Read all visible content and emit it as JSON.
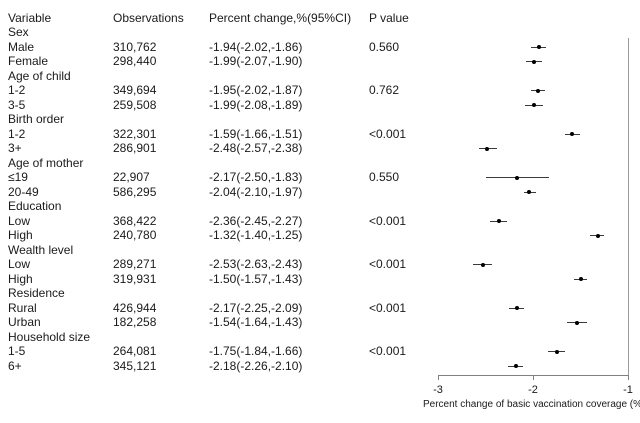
{
  "figure": {
    "background": "#ffffff",
    "text_color": "#1a1a1a",
    "axis_color": "#808080",
    "reference_line_color": "#9a9a9a",
    "ci_line_color": "#3a3a3a",
    "point_color": "#000000"
  },
  "table": {
    "headers": [
      "Variable",
      "Observations",
      "Percent change,%(95%CI)",
      "P value"
    ]
  },
  "chart_data": {
    "type": "scatter",
    "variant": "forest-plot",
    "title": "",
    "xlabel": "Percent change of basic vaccination coverage (%)",
    "xlim": [
      -3,
      -1
    ],
    "xticks": [
      -3,
      -2,
      -1
    ],
    "xtick_labels": [
      "-3",
      "-2",
      "-1"
    ],
    "reference_line_x": -1,
    "grid": false,
    "legend": false,
    "rows": [
      {
        "label": "Sex",
        "group": true,
        "observations": "",
        "percent_change": "",
        "p_value": ""
      },
      {
        "label": "Male",
        "observations": "310,762",
        "percent_change": "-1.94(-2.02,-1.86)",
        "p_value": "0.560",
        "estimate": -1.94,
        "ci_low": -2.02,
        "ci_high": -1.86
      },
      {
        "label": "Female",
        "observations": "298,440",
        "percent_change": "-1.99(-2.07,-1.90)",
        "p_value": "",
        "estimate": -1.99,
        "ci_low": -2.07,
        "ci_high": -1.9
      },
      {
        "label": "Age of child",
        "group": true,
        "observations": "",
        "percent_change": "",
        "p_value": ""
      },
      {
        "label": "1-2",
        "observations": "349,694",
        "percent_change": "-1.95(-2.02,-1.87)",
        "p_value": "0.762",
        "estimate": -1.95,
        "ci_low": -2.02,
        "ci_high": -1.87
      },
      {
        "label": "3-5",
        "observations": "259,508",
        "percent_change": "-1.99(-2.08,-1.89)",
        "p_value": "",
        "estimate": -1.99,
        "ci_low": -2.08,
        "ci_high": -1.89
      },
      {
        "label": "Birth order",
        "group": true,
        "observations": "",
        "percent_change": "",
        "p_value": ""
      },
      {
        "label": "1-2",
        "observations": "322,301",
        "percent_change": "-1.59(-1.66,-1.51)",
        "p_value": "<0.001",
        "estimate": -1.59,
        "ci_low": -1.66,
        "ci_high": -1.51
      },
      {
        "label": "3+",
        "observations": "286,901",
        "percent_change": "-2.48(-2.57,-2.38)",
        "p_value": "",
        "estimate": -2.48,
        "ci_low": -2.57,
        "ci_high": -2.38
      },
      {
        "label": "Age of mother",
        "group": true,
        "observations": "",
        "percent_change": "",
        "p_value": ""
      },
      {
        "label": "≤19",
        "observations": "22,907",
        "percent_change": "-2.17(-2.50,-1.83)",
        "p_value": "0.550",
        "estimate": -2.17,
        "ci_low": -2.5,
        "ci_high": -1.83
      },
      {
        "label": "20-49",
        "observations": "586,295",
        "percent_change": "-2.04(-2.10,-1.97)",
        "p_value": "",
        "estimate": -2.04,
        "ci_low": -2.1,
        "ci_high": -1.97
      },
      {
        "label": "Education",
        "group": true,
        "observations": "",
        "percent_change": "",
        "p_value": ""
      },
      {
        "label": "Low",
        "observations": "368,422",
        "percent_change": "-2.36(-2.45,-2.27)",
        "p_value": "<0.001",
        "estimate": -2.36,
        "ci_low": -2.45,
        "ci_high": -2.27
      },
      {
        "label": "High",
        "observations": "240,780",
        "percent_change": "-1.32(-1.40,-1.25)",
        "p_value": "",
        "estimate": -1.32,
        "ci_low": -1.4,
        "ci_high": -1.25
      },
      {
        "label": "Wealth level",
        "group": true,
        "observations": "",
        "percent_change": "",
        "p_value": ""
      },
      {
        "label": "Low",
        "observations": "289,271",
        "percent_change": "-2.53(-2.63,-2.43)",
        "p_value": "<0.001",
        "estimate": -2.53,
        "ci_low": -2.63,
        "ci_high": -2.43
      },
      {
        "label": "High",
        "observations": "319,931",
        "percent_change": "-1.50(-1.57,-1.43)",
        "p_value": "",
        "estimate": -1.5,
        "ci_low": -1.57,
        "ci_high": -1.43
      },
      {
        "label": "Residence",
        "group": true,
        "observations": "",
        "percent_change": "",
        "p_value": ""
      },
      {
        "label": "Rural",
        "observations": "426,944",
        "percent_change": "-2.17(-2.25,-2.09)",
        "p_value": "<0.001",
        "estimate": -2.17,
        "ci_low": -2.25,
        "ci_high": -2.09
      },
      {
        "label": "Urban",
        "observations": "182,258",
        "percent_change": "-1.54(-1.64,-1.43)",
        "p_value": "",
        "estimate": -1.54,
        "ci_low": -1.64,
        "ci_high": -1.43
      },
      {
        "label": "Household size",
        "group": true,
        "observations": "",
        "percent_change": "",
        "p_value": ""
      },
      {
        "label": "1-5",
        "observations": "264,081",
        "percent_change": "-1.75(-1.84,-1.66)",
        "p_value": "<0.001",
        "estimate": -1.75,
        "ci_low": -1.84,
        "ci_high": -1.66
      },
      {
        "label": "6+",
        "observations": "345,121",
        "percent_change": "-2.18(-2.26,-2.10)",
        "p_value": "",
        "estimate": -2.18,
        "ci_low": -2.26,
        "ci_high": -2.1
      }
    ]
  }
}
